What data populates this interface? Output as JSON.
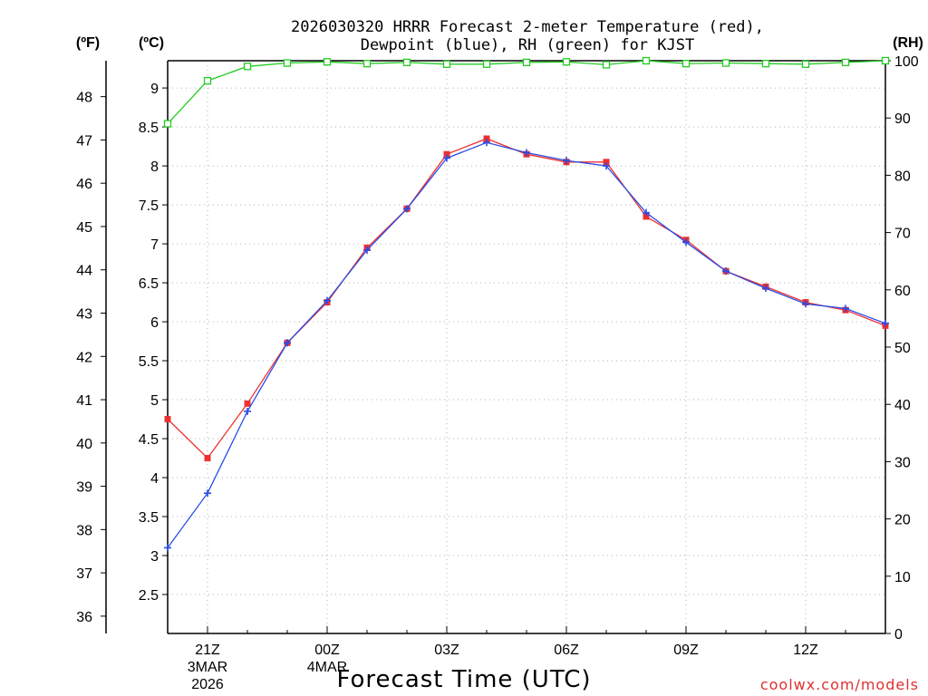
{
  "chart_data": {
    "type": "line",
    "title_line1": "2026030320 HRRR Forecast 2-meter Temperature (red),",
    "title_line2": "Dewpoint (blue), RH (green) for KJST",
    "xlabel": "Forecast Time (UTC)",
    "watermark": "coolwx.com/models",
    "left_unit_f": "(ºF)",
    "left_unit_c": "(ºC)",
    "right_unit": "(RH)",
    "x_range_hours": [
      20,
      38
    ],
    "celsius_range": [
      2.0,
      9.35
    ],
    "fahrenheit_range": [
      35.6,
      48.83
    ],
    "rh_range": [
      0,
      100
    ],
    "x_ticks": [
      {
        "hour": 21,
        "label": "21Z",
        "sub1": "3MAR",
        "sub2": "2026"
      },
      {
        "hour": 24,
        "label": "00Z",
        "sub1": "4MAR",
        "sub2": ""
      },
      {
        "hour": 27,
        "label": "03Z",
        "sub1": "",
        "sub2": ""
      },
      {
        "hour": 30,
        "label": "06Z",
        "sub1": "",
        "sub2": ""
      },
      {
        "hour": 33,
        "label": "09Z",
        "sub1": "",
        "sub2": ""
      },
      {
        "hour": 36,
        "label": "12Z",
        "sub1": "",
        "sub2": ""
      }
    ],
    "celsius_ticks": [
      "2.5",
      "3",
      "3.5",
      "4",
      "4.5",
      "5",
      "5.5",
      "6",
      "6.5",
      "7",
      "7.5",
      "8",
      "8.5",
      "9"
    ],
    "fahrenheit_ticks": [
      "36",
      "37",
      "38",
      "39",
      "40",
      "41",
      "42",
      "43",
      "44",
      "45",
      "46",
      "47",
      "48"
    ],
    "rh_ticks": [
      "0",
      "10",
      "20",
      "30",
      "40",
      "50",
      "60",
      "70",
      "80",
      "90",
      "100"
    ],
    "grid": true,
    "x_hours": [
      20,
      21,
      22,
      23,
      24,
      25,
      26,
      27,
      28,
      29,
      30,
      31,
      32,
      33,
      34,
      35,
      36,
      37,
      38
    ],
    "series": [
      {
        "key": "temperature",
        "color": "#ee3030",
        "marker": "square",
        "values": [
          4.75,
          4.25,
          4.95,
          5.73,
          6.25,
          6.95,
          7.45,
          8.15,
          8.35,
          8.15,
          8.05,
          8.05,
          7.35,
          7.05,
          6.65,
          6.45,
          6.25,
          6.15,
          5.95
        ]
      },
      {
        "key": "dewpoint",
        "color": "#2a4ce6",
        "marker": "plus",
        "values": [
          3.1,
          3.8,
          4.85,
          5.73,
          6.27,
          6.92,
          7.45,
          8.1,
          8.3,
          8.17,
          8.07,
          8.0,
          7.4,
          7.02,
          6.65,
          6.43,
          6.23,
          6.17,
          5.98
        ]
      },
      {
        "key": "rh",
        "color": "#22cc22",
        "marker": "open-square",
        "axis": "right",
        "values": [
          89,
          96.5,
          99,
          99.6,
          99.8,
          99.5,
          99.7,
          99.4,
          99.4,
          99.7,
          99.8,
          99.3,
          100,
          99.5,
          99.6,
          99.5,
          99.4,
          99.7,
          100
        ]
      }
    ]
  }
}
